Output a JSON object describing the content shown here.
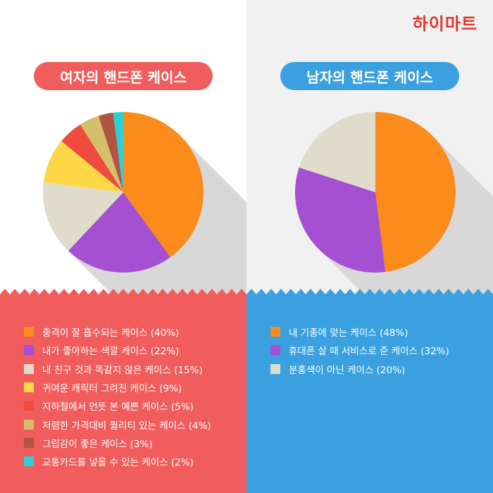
{
  "brand": {
    "logo_text": "하이마트"
  },
  "colors": {
    "left_accent": "#f15d5d",
    "right_accent": "#3aa0e0",
    "shadow": "#d8d8d8"
  },
  "chart_data": [
    {
      "type": "pie",
      "title": "여자의 핸드폰 케이스",
      "start": "top, clockwise",
      "slices": [
        {
          "label": "충격이 잘 흡수되는 케이스 (40%)",
          "value": 40,
          "color": "#fb8c1b"
        },
        {
          "label": "내가 좋아하는 색깔 케이스 (22%)",
          "value": 22,
          "color": "#a54fd3"
        },
        {
          "label": "내 친구 것과 똑같지 않은 케이스 (15%)",
          "value": 15,
          "color": "#e0dccb"
        },
        {
          "label": "귀여운 캐릭터 그려진 케이스 (9%)",
          "value": 9,
          "color": "#fed746"
        },
        {
          "label": "지하철에서 언뜻 본 예쁜 케이스 (5%)",
          "value": 5,
          "color": "#f04b3f"
        },
        {
          "label": "저렴한 가격대비 퀄리티 있는 케이스 (4%)",
          "value": 4,
          "color": "#d4c06a"
        },
        {
          "label": "그립감이 좋은 케이스 (3%)",
          "value": 3,
          "color": "#b35443"
        },
        {
          "label": "교통카드를 넣을 수 있는 케이스 (2%)",
          "value": 2,
          "color": "#2ad1d6"
        }
      ]
    },
    {
      "type": "pie",
      "title": "남자의 핸드폰 케이스",
      "start": "top, clockwise",
      "slices": [
        {
          "label": "내 기종에 맞는 케이스 (48%)",
          "value": 48,
          "color": "#fb8c1b"
        },
        {
          "label": "휴대폰 살 때 서비스로 준 케이스 (32%)",
          "value": 32,
          "color": "#a54fd3"
        },
        {
          "label": "분홍색이 아닌 케이스 (20%)",
          "value": 20,
          "color": "#e0dccb"
        }
      ]
    }
  ]
}
